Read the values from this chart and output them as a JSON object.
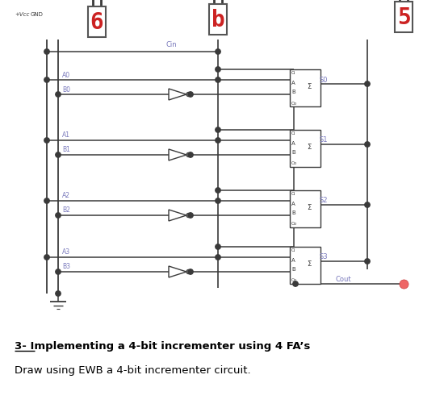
{
  "bg_color": "#ffffff",
  "line_color": "#3a3a3a",
  "blue_text": "#7777bb",
  "red_digit": "#cc2222",
  "title": "3- Implementing a 4-bit incrementer using 4 FA’s",
  "subtitle": "Draw using EWB a 4-bit incrementer circuit.",
  "vcc_label": "+Vcc GND",
  "fa_labels": [
    "A",
    "B",
    "Ci",
    "Σ",
    "Co"
  ],
  "bit_labels_a": [
    "A0",
    "A1",
    "A2",
    "A3"
  ],
  "bit_labels_b": [
    "B0",
    "B1",
    "B2",
    "B3"
  ],
  "sum_labels": [
    "S0",
    "S1",
    "S2",
    "S3"
  ],
  "cin_label": "Cin",
  "cout_label": "Cout"
}
